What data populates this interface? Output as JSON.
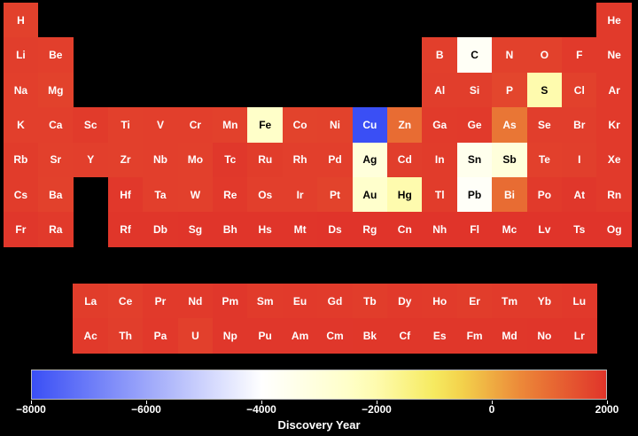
{
  "chart_data": {
    "type": "heatmap",
    "colorbar": {
      "label": "Discovery Year",
      "range": [
        -8000,
        2000
      ],
      "ticks": [
        -8000,
        -6000,
        -4000,
        -2000,
        0,
        2000
      ],
      "tick_labels": [
        "−8000",
        "−6000",
        "−4000",
        "−2000",
        "0",
        "2000"
      ],
      "colors": {
        "low": "#3a4ff5",
        "mid_low": "#ffffff",
        "mid_high": "#f5e14a",
        "high": "#e0342a"
      }
    },
    "elements": [
      {
        "symbol": "H",
        "period": 1,
        "group": 1,
        "year": 1766
      },
      {
        "symbol": "He",
        "period": 1,
        "group": 18,
        "year": 1895
      },
      {
        "symbol": "Li",
        "period": 2,
        "group": 1,
        "year": 1817
      },
      {
        "symbol": "Be",
        "period": 2,
        "group": 2,
        "year": 1798
      },
      {
        "symbol": "B",
        "period": 2,
        "group": 13,
        "year": 1808
      },
      {
        "symbol": "C",
        "period": 2,
        "group": 14,
        "year": -3750
      },
      {
        "symbol": "N",
        "period": 2,
        "group": 15,
        "year": 1772
      },
      {
        "symbol": "O",
        "period": 2,
        "group": 16,
        "year": 1771
      },
      {
        "symbol": "F",
        "period": 2,
        "group": 17,
        "year": 1886
      },
      {
        "symbol": "Ne",
        "period": 2,
        "group": 18,
        "year": 1898
      },
      {
        "symbol": "Na",
        "period": 3,
        "group": 1,
        "year": 1807
      },
      {
        "symbol": "Mg",
        "period": 3,
        "group": 2,
        "year": 1755
      },
      {
        "symbol": "Al",
        "period": 3,
        "group": 13,
        "year": 1825
      },
      {
        "symbol": "Si",
        "period": 3,
        "group": 14,
        "year": 1824
      },
      {
        "symbol": "P",
        "period": 3,
        "group": 15,
        "year": 1669
      },
      {
        "symbol": "S",
        "period": 3,
        "group": 16,
        "year": -2000
      },
      {
        "symbol": "Cl",
        "period": 3,
        "group": 17,
        "year": 1774
      },
      {
        "symbol": "Ar",
        "period": 3,
        "group": 18,
        "year": 1894
      },
      {
        "symbol": "K",
        "period": 4,
        "group": 1,
        "year": 1807
      },
      {
        "symbol": "Ca",
        "period": 4,
        "group": 2,
        "year": 1808
      },
      {
        "symbol": "Sc",
        "period": 4,
        "group": 3,
        "year": 1879
      },
      {
        "symbol": "Ti",
        "period": 4,
        "group": 4,
        "year": 1791
      },
      {
        "symbol": "V",
        "period": 4,
        "group": 5,
        "year": 1801
      },
      {
        "symbol": "Cr",
        "period": 4,
        "group": 6,
        "year": 1797
      },
      {
        "symbol": "Mn",
        "period": 4,
        "group": 7,
        "year": 1774
      },
      {
        "symbol": "Fe",
        "period": 4,
        "group": 8,
        "year": -2500
      },
      {
        "symbol": "Co",
        "period": 4,
        "group": 9,
        "year": 1735
      },
      {
        "symbol": "Ni",
        "period": 4,
        "group": 10,
        "year": 1751
      },
      {
        "symbol": "Cu",
        "period": 4,
        "group": 11,
        "year": -8000
      },
      {
        "symbol": "Zn",
        "period": 4,
        "group": 12,
        "year": 1000
      },
      {
        "symbol": "Ga",
        "period": 4,
        "group": 13,
        "year": 1875
      },
      {
        "symbol": "Ge",
        "period": 4,
        "group": 14,
        "year": 1886
      },
      {
        "symbol": "As",
        "period": 4,
        "group": 15,
        "year": 815
      },
      {
        "symbol": "Se",
        "period": 4,
        "group": 16,
        "year": 1817
      },
      {
        "symbol": "Br",
        "period": 4,
        "group": 17,
        "year": 1825
      },
      {
        "symbol": "Kr",
        "period": 4,
        "group": 18,
        "year": 1898
      },
      {
        "symbol": "Rb",
        "period": 5,
        "group": 1,
        "year": 1861
      },
      {
        "symbol": "Sr",
        "period": 5,
        "group": 2,
        "year": 1790
      },
      {
        "symbol": "Y",
        "period": 5,
        "group": 3,
        "year": 1794
      },
      {
        "symbol": "Zr",
        "period": 5,
        "group": 4,
        "year": 1789
      },
      {
        "symbol": "Nb",
        "period": 5,
        "group": 5,
        "year": 1801
      },
      {
        "symbol": "Mo",
        "period": 5,
        "group": 6,
        "year": 1778
      },
      {
        "symbol": "Tc",
        "period": 5,
        "group": 7,
        "year": 1937
      },
      {
        "symbol": "Ru",
        "period": 5,
        "group": 8,
        "year": 1844
      },
      {
        "symbol": "Rh",
        "period": 5,
        "group": 9,
        "year": 1804
      },
      {
        "symbol": "Pd",
        "period": 5,
        "group": 10,
        "year": 1802
      },
      {
        "symbol": "Ag",
        "period": 5,
        "group": 11,
        "year": -3000
      },
      {
        "symbol": "Cd",
        "period": 5,
        "group": 12,
        "year": 1817
      },
      {
        "symbol": "In",
        "period": 5,
        "group": 13,
        "year": 1863
      },
      {
        "symbol": "Sn",
        "period": 5,
        "group": 14,
        "year": -3500
      },
      {
        "symbol": "Sb",
        "period": 5,
        "group": 15,
        "year": -3000
      },
      {
        "symbol": "Te",
        "period": 5,
        "group": 16,
        "year": 1782
      },
      {
        "symbol": "I",
        "period": 5,
        "group": 17,
        "year": 1811
      },
      {
        "symbol": "Xe",
        "period": 5,
        "group": 18,
        "year": 1898
      },
      {
        "symbol": "Cs",
        "period": 6,
        "group": 1,
        "year": 1860
      },
      {
        "symbol": "Ba",
        "period": 6,
        "group": 2,
        "year": 1772
      },
      {
        "symbol": "Hf",
        "period": 6,
        "group": 4,
        "year": 1922
      },
      {
        "symbol": "Ta",
        "period": 6,
        "group": 5,
        "year": 1802
      },
      {
        "symbol": "W",
        "period": 6,
        "group": 6,
        "year": 1781
      },
      {
        "symbol": "Re",
        "period": 6,
        "group": 7,
        "year": 1908
      },
      {
        "symbol": "Os",
        "period": 6,
        "group": 8,
        "year": 1803
      },
      {
        "symbol": "Ir",
        "period": 6,
        "group": 9,
        "year": 1803
      },
      {
        "symbol": "Pt",
        "period": 6,
        "group": 10,
        "year": 1735
      },
      {
        "symbol": "Au",
        "period": 6,
        "group": 11,
        "year": -2600
      },
      {
        "symbol": "Hg",
        "period": 6,
        "group": 12,
        "year": -2000
      },
      {
        "symbol": "Tl",
        "period": 6,
        "group": 13,
        "year": 1861
      },
      {
        "symbol": "Pb",
        "period": 6,
        "group": 14,
        "year": -3800
      },
      {
        "symbol": "Bi",
        "period": 6,
        "group": 15,
        "year": 1000
      },
      {
        "symbol": "Po",
        "period": 6,
        "group": 16,
        "year": 1898
      },
      {
        "symbol": "At",
        "period": 6,
        "group": 17,
        "year": 1940
      },
      {
        "symbol": "Rn",
        "period": 6,
        "group": 18,
        "year": 1899
      },
      {
        "symbol": "Fr",
        "period": 7,
        "group": 1,
        "year": 1939
      },
      {
        "symbol": "Ra",
        "period": 7,
        "group": 2,
        "year": 1898
      },
      {
        "symbol": "Rf",
        "period": 7,
        "group": 4,
        "year": 1964
      },
      {
        "symbol": "Db",
        "period": 7,
        "group": 5,
        "year": 1967
      },
      {
        "symbol": "Sg",
        "period": 7,
        "group": 6,
        "year": 1974
      },
      {
        "symbol": "Bh",
        "period": 7,
        "group": 7,
        "year": 1981
      },
      {
        "symbol": "Hs",
        "period": 7,
        "group": 8,
        "year": 1984
      },
      {
        "symbol": "Mt",
        "period": 7,
        "group": 9,
        "year": 1982
      },
      {
        "symbol": "Ds",
        "period": 7,
        "group": 10,
        "year": 1994
      },
      {
        "symbol": "Rg",
        "period": 7,
        "group": 11,
        "year": 1994
      },
      {
        "symbol": "Cn",
        "period": 7,
        "group": 12,
        "year": 1996
      },
      {
        "symbol": "Nh",
        "period": 7,
        "group": 13,
        "year": 2003
      },
      {
        "symbol": "Fl",
        "period": 7,
        "group": 14,
        "year": 1999
      },
      {
        "symbol": "Mc",
        "period": 7,
        "group": 15,
        "year": 2003
      },
      {
        "symbol": "Lv",
        "period": 7,
        "group": 16,
        "year": 2000
      },
      {
        "symbol": "Ts",
        "period": 7,
        "group": 17,
        "year": 2010
      },
      {
        "symbol": "Og",
        "period": 7,
        "group": 18,
        "year": 2002
      },
      {
        "symbol": "La",
        "period": 9,
        "group": 3,
        "year": 1839
      },
      {
        "symbol": "Ce",
        "period": 9,
        "group": 4,
        "year": 1803
      },
      {
        "symbol": "Pr",
        "period": 9,
        "group": 5,
        "year": 1885
      },
      {
        "symbol": "Nd",
        "period": 9,
        "group": 6,
        "year": 1885
      },
      {
        "symbol": "Pm",
        "period": 9,
        "group": 7,
        "year": 1945
      },
      {
        "symbol": "Sm",
        "period": 9,
        "group": 8,
        "year": 1879
      },
      {
        "symbol": "Eu",
        "period": 9,
        "group": 9,
        "year": 1896
      },
      {
        "symbol": "Gd",
        "period": 9,
        "group": 10,
        "year": 1880
      },
      {
        "symbol": "Tb",
        "period": 9,
        "group": 11,
        "year": 1843
      },
      {
        "symbol": "Dy",
        "period": 9,
        "group": 12,
        "year": 1886
      },
      {
        "symbol": "Ho",
        "period": 9,
        "group": 13,
        "year": 1878
      },
      {
        "symbol": "Er",
        "period": 9,
        "group": 14,
        "year": 1843
      },
      {
        "symbol": "Tm",
        "period": 9,
        "group": 15,
        "year": 1879
      },
      {
        "symbol": "Yb",
        "period": 9,
        "group": 16,
        "year": 1878
      },
      {
        "symbol": "Lu",
        "period": 9,
        "group": 17,
        "year": 1907
      },
      {
        "symbol": "Ac",
        "period": 10,
        "group": 3,
        "year": 1899
      },
      {
        "symbol": "Th",
        "period": 10,
        "group": 4,
        "year": 1829
      },
      {
        "symbol": "Pa",
        "period": 10,
        "group": 5,
        "year": 1913
      },
      {
        "symbol": "U",
        "period": 10,
        "group": 6,
        "year": 1789
      },
      {
        "symbol": "Np",
        "period": 10,
        "group": 7,
        "year": 1940
      },
      {
        "symbol": "Pu",
        "period": 10,
        "group": 8,
        "year": 1940
      },
      {
        "symbol": "Am",
        "period": 10,
        "group": 9,
        "year": 1944
      },
      {
        "symbol": "Cm",
        "period": 10,
        "group": 10,
        "year": 1944
      },
      {
        "symbol": "Bk",
        "period": 10,
        "group": 11,
        "year": 1949
      },
      {
        "symbol": "Cf",
        "period": 10,
        "group": 12,
        "year": 1950
      },
      {
        "symbol": "Es",
        "period": 10,
        "group": 13,
        "year": 1952
      },
      {
        "symbol": "Fm",
        "period": 10,
        "group": 14,
        "year": 1952
      },
      {
        "symbol": "Md",
        "period": 10,
        "group": 15,
        "year": 1955
      },
      {
        "symbol": "No",
        "period": 10,
        "group": 16,
        "year": 1963
      },
      {
        "symbol": "Lr",
        "period": 10,
        "group": 17,
        "year": 1961
      }
    ]
  }
}
